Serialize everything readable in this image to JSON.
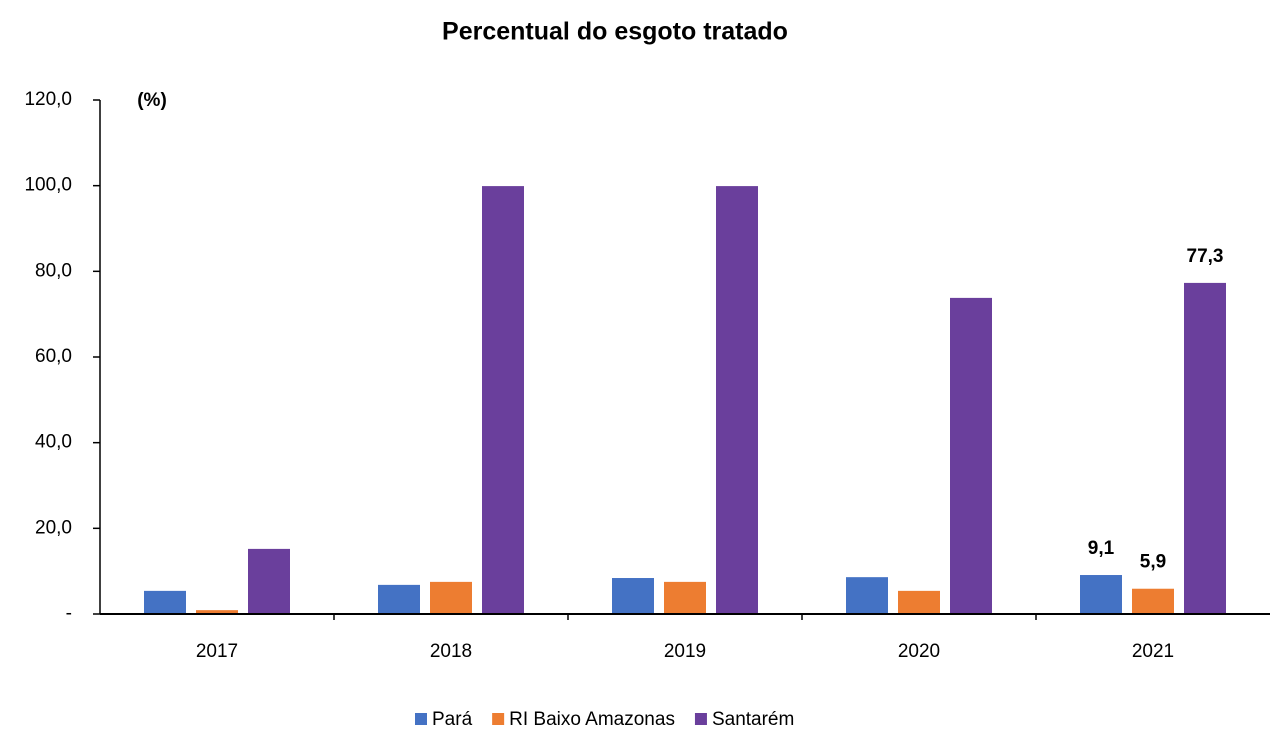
{
  "chart_data": {
    "type": "bar",
    "title": "Percentual do esgoto tratado",
    "y_label": "(%)",
    "categories": [
      "2017",
      "2018",
      "2019",
      "2020",
      "2021"
    ],
    "series": [
      {
        "name": "Pará",
        "color": "#4472c4",
        "values": [
          5.4,
          6.8,
          8.4,
          8.6,
          9.1
        ],
        "value_labels": [
          null,
          null,
          null,
          null,
          "9,1"
        ]
      },
      {
        "name": "RI Baixo Amazonas",
        "color": "#ed7d31",
        "values": [
          0.9,
          7.5,
          7.5,
          5.4,
          5.9
        ],
        "value_labels": [
          null,
          null,
          null,
          null,
          "5,9"
        ]
      },
      {
        "name": "Santarém",
        "color": "#6a3f9c",
        "values": [
          15.2,
          99.9,
          99.9,
          73.8,
          77.3
        ],
        "value_labels": [
          null,
          null,
          null,
          null,
          "77,3"
        ]
      }
    ],
    "ylim": [
      0,
      120
    ],
    "yticks": [
      {
        "value": 0,
        "label": "-"
      },
      {
        "value": 20,
        "label": "20,0"
      },
      {
        "value": 40,
        "label": "40,0"
      },
      {
        "value": 60,
        "label": "60,0"
      },
      {
        "value": 80,
        "label": "80,0"
      },
      {
        "value": 100,
        "label": "100,0"
      },
      {
        "value": 120,
        "label": "120,0"
      }
    ],
    "grid": false,
    "legend": "bottom"
  }
}
